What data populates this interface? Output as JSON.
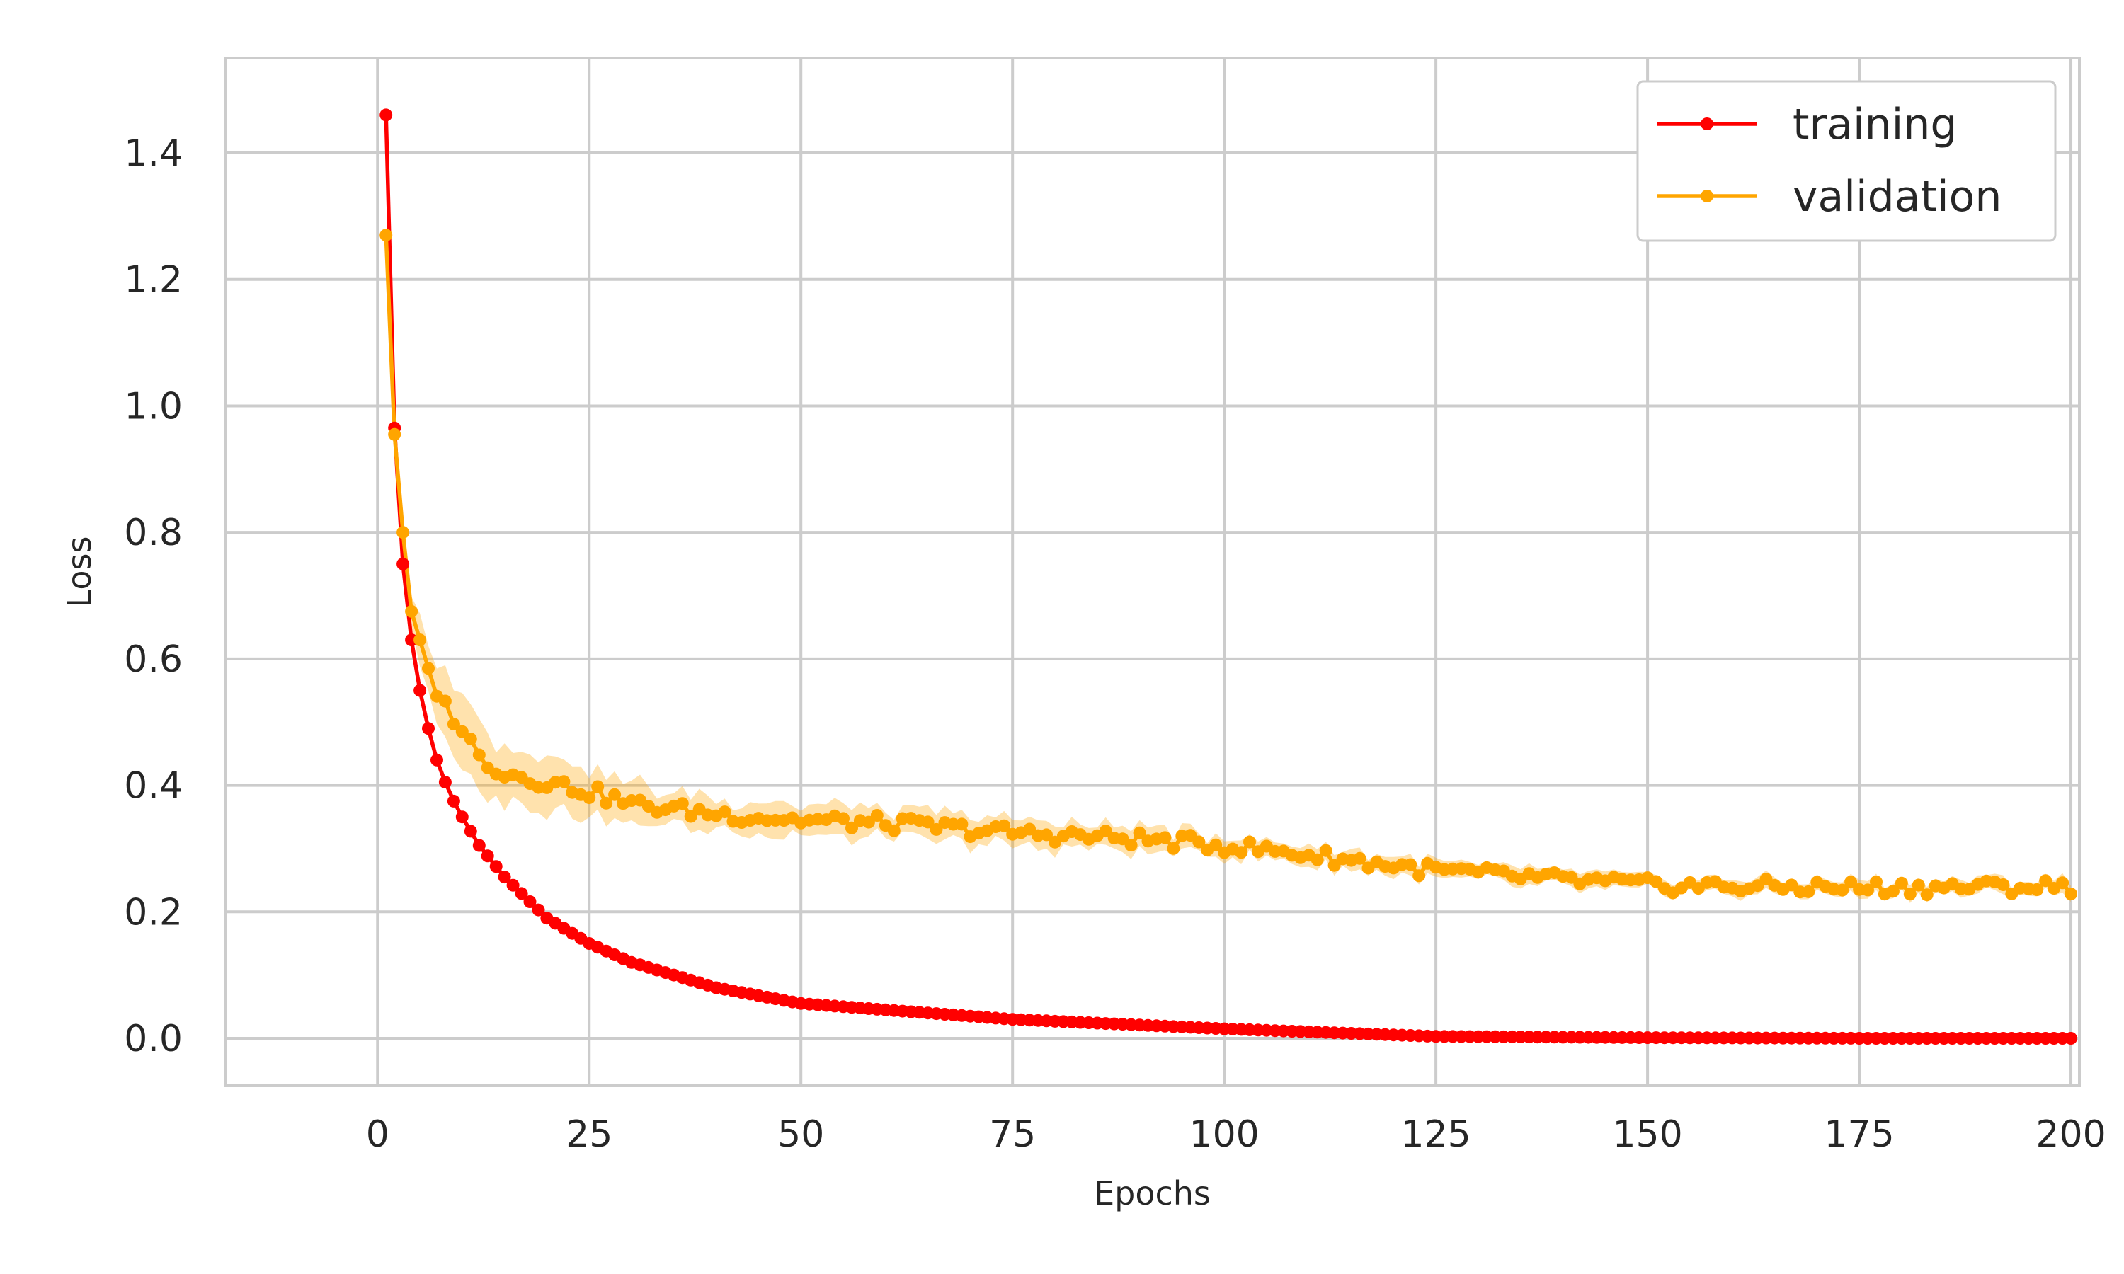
{
  "chart_data": {
    "type": "line",
    "title": "",
    "xlabel": "Epochs",
    "ylabel": "Loss",
    "xlim": [
      -18,
      201
    ],
    "ylim": [
      -0.075,
      1.55
    ],
    "xticks": [
      0,
      25,
      50,
      75,
      100,
      125,
      150,
      175,
      200
    ],
    "xtick_labels": [
      "0",
      "25",
      "50",
      "75",
      "100",
      "125",
      "150",
      "175",
      "200"
    ],
    "yticks": [
      0.0,
      0.2,
      0.4,
      0.6,
      0.8,
      1.0,
      1.2,
      1.4
    ],
    "ytick_labels": [
      "0.0",
      "0.2",
      "0.4",
      "0.6",
      "0.8",
      "1.0",
      "1.2",
      "1.4"
    ],
    "grid": true,
    "legend_position": "top-right",
    "x_range": [
      1,
      200
    ],
    "series": [
      {
        "name": "training",
        "color": "#ff0000",
        "marker": "circle",
        "keypoints": [
          [
            1,
            1.46
          ],
          [
            2,
            0.965
          ],
          [
            3,
            0.75
          ],
          [
            4,
            0.63
          ],
          [
            5,
            0.55
          ],
          [
            6,
            0.49
          ],
          [
            7,
            0.44
          ],
          [
            8,
            0.405
          ],
          [
            9,
            0.375
          ],
          [
            10,
            0.35
          ],
          [
            12,
            0.305
          ],
          [
            15,
            0.255
          ],
          [
            20,
            0.19
          ],
          [
            25,
            0.15
          ],
          [
            30,
            0.12
          ],
          [
            40,
            0.08
          ],
          [
            50,
            0.055
          ],
          [
            60,
            0.045
          ],
          [
            75,
            0.03
          ],
          [
            100,
            0.015
          ],
          [
            125,
            0.003
          ],
          [
            150,
            0.001
          ],
          [
            175,
            0.0
          ],
          [
            200,
            0.0
          ]
        ]
      },
      {
        "name": "validation",
        "color": "#ffa500",
        "band_color": "#ffa500",
        "marker": "circle",
        "keypoints": [
          [
            1,
            1.27
          ],
          [
            2,
            0.955
          ],
          [
            3,
            0.8
          ],
          [
            4,
            0.675
          ],
          [
            5,
            0.63
          ],
          [
            6,
            0.585
          ],
          [
            7,
            0.55
          ],
          [
            8,
            0.525
          ],
          [
            10,
            0.49
          ],
          [
            12,
            0.445
          ],
          [
            15,
            0.42
          ],
          [
            20,
            0.405
          ],
          [
            25,
            0.39
          ],
          [
            30,
            0.37
          ],
          [
            40,
            0.355
          ],
          [
            50,
            0.345
          ],
          [
            60,
            0.34
          ],
          [
            75,
            0.325
          ],
          [
            90,
            0.315
          ],
          [
            100,
            0.305
          ],
          [
            110,
            0.29
          ],
          [
            125,
            0.265
          ],
          [
            140,
            0.25
          ],
          [
            150,
            0.242
          ],
          [
            175,
            0.238
          ],
          [
            200,
            0.24
          ]
        ],
        "band_halfwidth_keypoints": [
          [
            1,
            0.005
          ],
          [
            5,
            0.04
          ],
          [
            10,
            0.05
          ],
          [
            20,
            0.04
          ],
          [
            40,
            0.025
          ],
          [
            75,
            0.02
          ],
          [
            100,
            0.015
          ],
          [
            150,
            0.012
          ],
          [
            200,
            0.012
          ]
        ]
      }
    ]
  }
}
